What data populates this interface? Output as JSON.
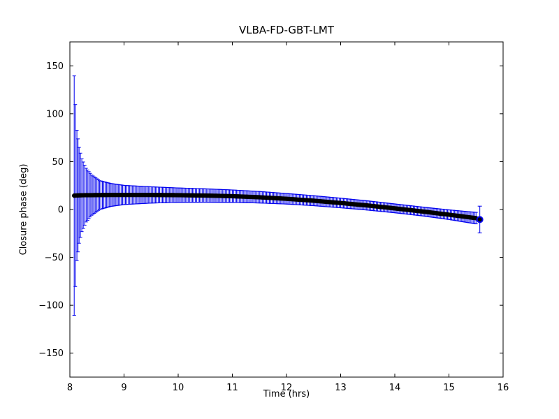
{
  "figure": {
    "title": "VLBA-FD-GBT-LMT",
    "xlabel": "Time (hrs)",
    "ylabel": "Closure phase (deg)"
  },
  "chart_data": {
    "type": "scatter",
    "title": "VLBA-FD-GBT-LMT",
    "xlabel": "Time (hrs)",
    "ylabel": "Closure phase (deg)",
    "xlim": [
      8,
      16
    ],
    "ylim": [
      -175,
      175
    ],
    "xticks": [
      8,
      9,
      10,
      11,
      12,
      13,
      14,
      15,
      16
    ],
    "yticks": [
      -150,
      -100,
      -50,
      0,
      50,
      100,
      150
    ],
    "grid": false,
    "legend": "none",
    "marker_color": "#000000",
    "errorbar_color": "#0000ee",
    "series": {
      "name": "closure-phase-with-errorbars",
      "knots_t": [
        8.08,
        8.1,
        8.13,
        8.17,
        8.22,
        8.3,
        8.4,
        8.55,
        8.75,
        9.0,
        9.5,
        10.0,
        10.5,
        11.0,
        11.5,
        12.0,
        12.5,
        13.0,
        13.5,
        14.0,
        14.5,
        15.0,
        15.5
      ],
      "knots_phase": [
        14.5,
        14.6,
        14.7,
        14.8,
        14.9,
        15.0,
        15.0,
        15.1,
        15.2,
        15.2,
        15.2,
        15.0,
        14.6,
        13.9,
        12.8,
        11.2,
        9.2,
        6.8,
        4.2,
        1.2,
        -2.0,
        -5.4,
        -9.0
      ],
      "knots_err": [
        125,
        95,
        68,
        50,
        38,
        28,
        21,
        15,
        12,
        10,
        8.5,
        7.5,
        7.0,
        6.5,
        6.0,
        5.5,
        5.2,
        5.0,
        4.8,
        4.6,
        4.6,
        5.0,
        6.0
      ]
    },
    "outlier": {
      "t": 15.57,
      "phase": -10.5,
      "err": 14
    }
  }
}
